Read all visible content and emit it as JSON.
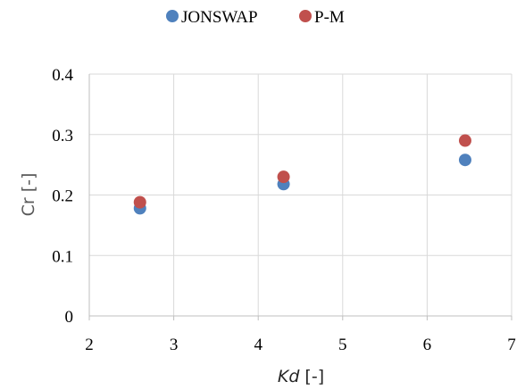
{
  "chart_data": {
    "type": "scatter",
    "title": "",
    "xlabel_italic": "Kd",
    "xlabel_rest": " [-]",
    "ylabel": "Cr [-]",
    "xlim": [
      2,
      7
    ],
    "ylim": [
      0,
      0.4
    ],
    "x_ticks": [
      "2",
      "3",
      "4",
      "5",
      "6",
      "7"
    ],
    "y_ticks": [
      "0",
      "0.1",
      "0.2",
      "0.3",
      "0.4"
    ],
    "grid": true,
    "legend_position": "top",
    "series": [
      {
        "name": "JONSWAP",
        "color": "#4f81bd",
        "points": [
          {
            "x": 2.6,
            "y": 0.178
          },
          {
            "x": 4.3,
            "y": 0.218
          },
          {
            "x": 6.45,
            "y": 0.258
          }
        ]
      },
      {
        "name": "P-M",
        "color": "#c0504d",
        "points": [
          {
            "x": 2.6,
            "y": 0.188
          },
          {
            "x": 4.3,
            "y": 0.23
          },
          {
            "x": 6.45,
            "y": 0.29
          }
        ]
      }
    ]
  }
}
